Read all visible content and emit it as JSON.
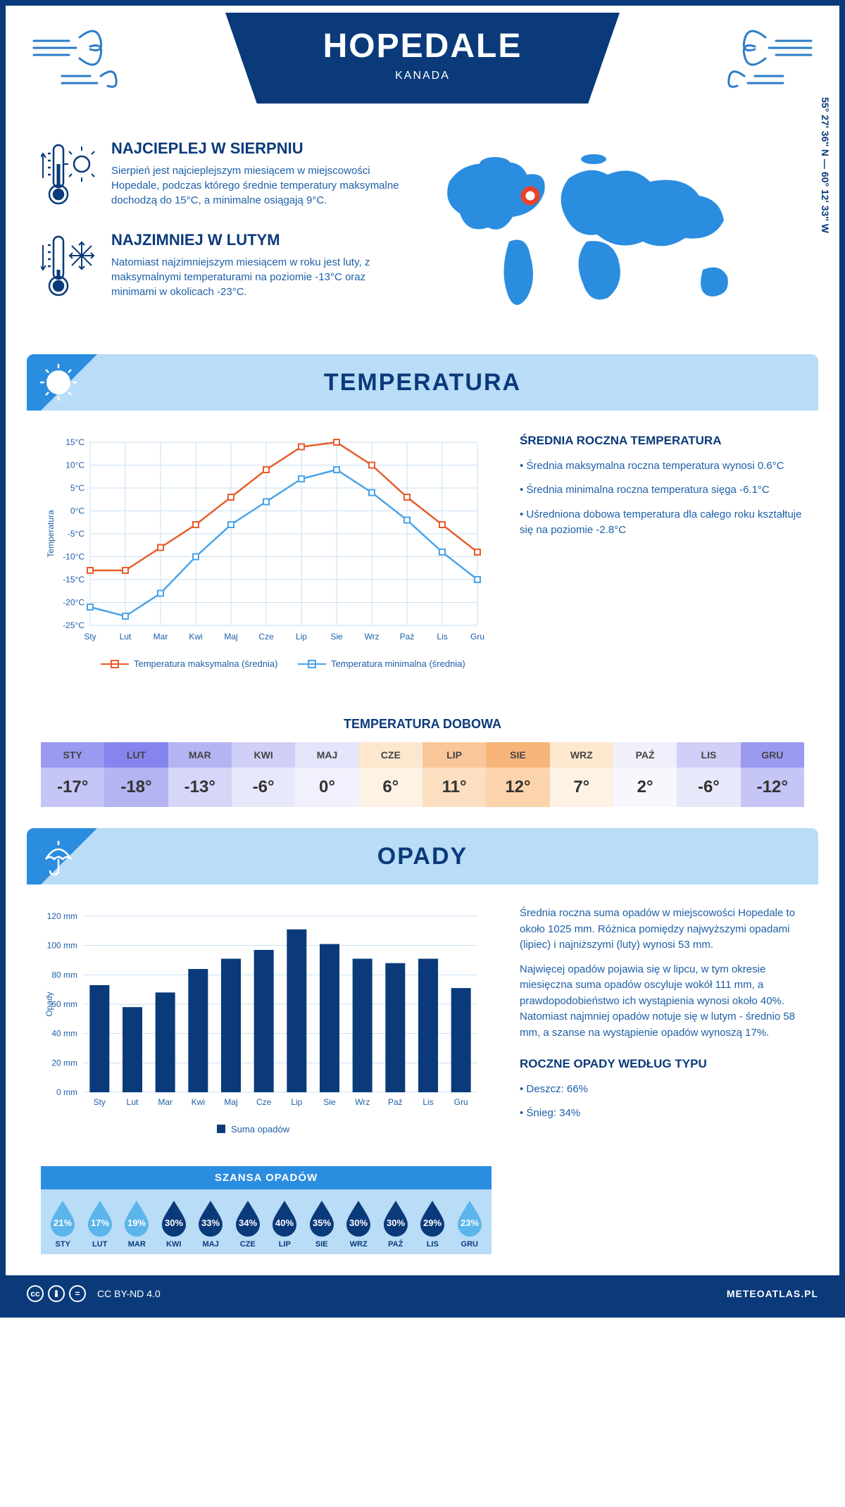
{
  "header": {
    "city": "HOPEDALE",
    "country": "KANADA",
    "coords": "55° 27' 36'' N — 60° 12' 33'' W"
  },
  "facts": {
    "warm": {
      "title": "NAJCIEPLEJ W SIERPNIU",
      "text": "Sierpień jest najcieplejszym miesiącem w miejscowości Hopedale, podczas którego średnie temperatury maksymalne dochodzą do 15°C, a minimalne osiągają 9°C."
    },
    "cold": {
      "title": "NAJZIMNIEJ W LUTYM",
      "text": "Natomiast najzimniejszym miesiącem w roku jest luty, z maksymalnymi temperaturami na poziomie -13°C oraz minimami w okolicach -23°C."
    }
  },
  "sections": {
    "temp_title": "TEMPERATURA",
    "precip_title": "OPADY"
  },
  "months": [
    "Sty",
    "Lut",
    "Mar",
    "Kwi",
    "Maj",
    "Cze",
    "Lip",
    "Sie",
    "Wrz",
    "Paź",
    "Lis",
    "Gru"
  ],
  "months_uc": [
    "STY",
    "LUT",
    "MAR",
    "KWI",
    "MAJ",
    "CZE",
    "LIP",
    "SIE",
    "WRZ",
    "PAŹ",
    "LIS",
    "GRU"
  ],
  "temp_chart": {
    "type": "line",
    "ylabel": "Temperatura",
    "ylim": [
      -25,
      15
    ],
    "ytick_step": 5,
    "y_suffix": "°C",
    "max_series": [
      -13,
      -13,
      -8,
      -3,
      3,
      9,
      14,
      15,
      10,
      3,
      -3,
      -9
    ],
    "min_series": [
      -21,
      -23,
      -18,
      -10,
      -3,
      2,
      7,
      9,
      4,
      -2,
      -9,
      -15
    ],
    "max_color": "#e85d2a",
    "min_color": "#4aa3e8",
    "grid_color": "#c9dff2",
    "legend_max": "Temperatura maksymalna (średnia)",
    "legend_min": "Temperatura minimalna (średnia)"
  },
  "temp_side": {
    "heading": "ŚREDNIA ROCZNA TEMPERATURA",
    "b1": "• Średnia maksymalna roczna temperatura wynosi 0.6°C",
    "b2": "• Średnia minimalna roczna temperatura sięga -6.1°C",
    "b3": "• Uśredniona dobowa temperatura dla całego roku kształtuje się na poziomie -2.8°C"
  },
  "daily": {
    "title": "TEMPERATURA DOBOWA",
    "values": [
      "-17°",
      "-18°",
      "-13°",
      "-6°",
      "0°",
      "6°",
      "11°",
      "12°",
      "7°",
      "2°",
      "-6°",
      "-12°"
    ],
    "head_colors": [
      "#9a9af0",
      "#8585ed",
      "#b4b4f3",
      "#cfcff7",
      "#e4e4fa",
      "#fde7cf",
      "#fac79a",
      "#f8b57a",
      "#fde7cf",
      "#f0f0fc",
      "#cfcff7",
      "#9a9af0"
    ],
    "body_colors": [
      "#c5c5f6",
      "#b4b4f3",
      "#d6d6f9",
      "#e8e8fb",
      "#f1f1fd",
      "#fef2e5",
      "#fcdfc1",
      "#fbd4ad",
      "#fef2e5",
      "#f7f7fd",
      "#e8e8fb",
      "#c5c5f6"
    ]
  },
  "precip_chart": {
    "type": "bar",
    "ylabel": "Opady",
    "ylim": [
      0,
      120
    ],
    "ytick_step": 20,
    "y_suffix": " mm",
    "values": [
      73,
      58,
      68,
      84,
      91,
      97,
      111,
      101,
      91,
      88,
      91,
      71
    ],
    "bar_color": "#0a3a7a",
    "grid_color": "#c9dff2",
    "legend": "Suma opadów"
  },
  "precip_side": {
    "p1": "Średnia roczna suma opadów w miejscowości Hopedale to około 1025 mm. Różnica pomiędzy najwyższymi opadami (lipiec) i najniższymi (luty) wynosi 53 mm.",
    "p2": "Najwięcej opadów pojawia się w lipcu, w tym okresie miesięczna suma opadów oscyluje wokół 111 mm, a prawdopodobieństwo ich wystąpienia wynosi około 40%. Natomiast najmniej opadów notuje się w lutym - średnio 58 mm, a szanse na wystąpienie opadów wynoszą 17%.",
    "type_heading": "ROCZNE OPADY WEDŁUG TYPU",
    "rain": "• Deszcz: 66%",
    "snow": "• Śnieg: 34%"
  },
  "chance": {
    "title": "SZANSA OPADÓW",
    "values": [
      21,
      17,
      19,
      30,
      33,
      34,
      40,
      35,
      30,
      30,
      29,
      23
    ],
    "light_color": "#5bb5ea",
    "dark_color": "#0a3a7a",
    "threshold": 25
  },
  "footer": {
    "license": "CC BY-ND 4.0",
    "site": "METEOATLAS.PL"
  }
}
